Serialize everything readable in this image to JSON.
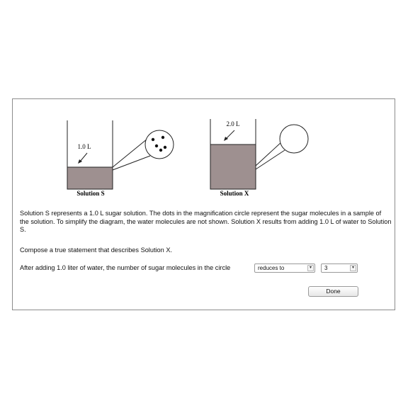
{
  "diagram": {
    "left_volume": "1.0 L",
    "left_caption": "Solution S",
    "right_volume": "2.0 L",
    "right_caption": "Solution X",
    "colors": {
      "liquid": "#9e9090",
      "outline": "#222222"
    }
  },
  "description": "Solution S represents a 1.0 L sugar solution. The dots in the magnification circle represent the sugar molecules in a sample of the solution. To simplify the diagram, the water molecules are not shown. Solution X results from adding 1.0 L of water to Solution S.",
  "prompt": "Compose a true statement that describes Solution X.",
  "statement_prefix": "After adding 1.0 liter of water, the number of sugar molecules in the circle",
  "select_1": {
    "value": "reduces to",
    "arrow_icon": "chevron-down-icon"
  },
  "select_2": {
    "value": "3",
    "arrow_icon": "chevron-down-icon"
  },
  "done_label": "Done"
}
